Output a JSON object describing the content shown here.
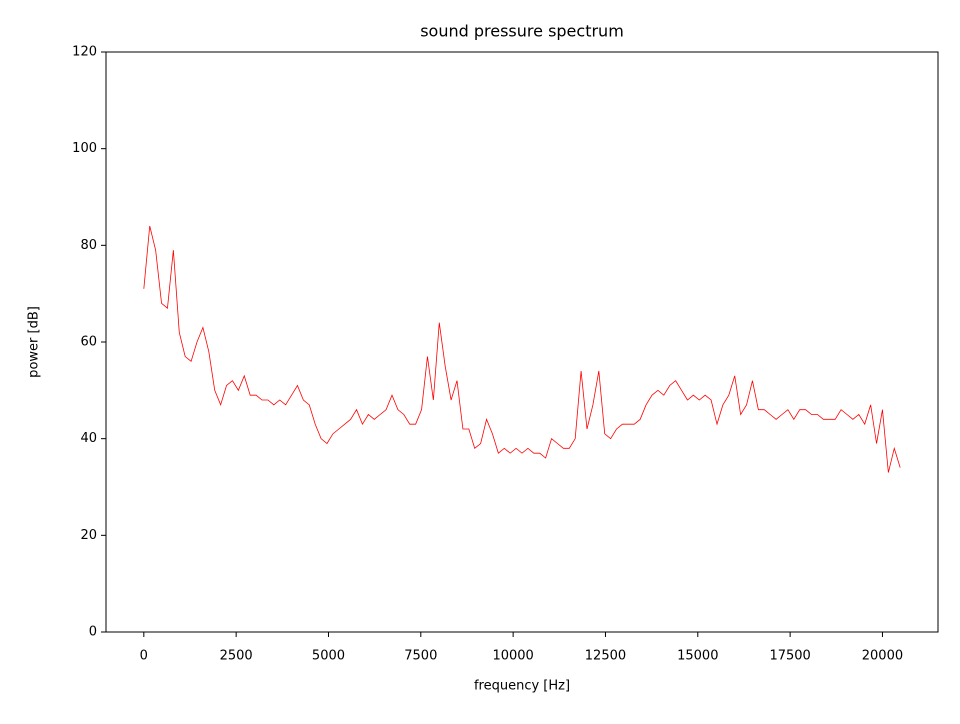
{
  "chart_data": {
    "type": "line",
    "title": "sound pressure spectrum",
    "x_label": "frequency [Hz]",
    "y_label": "power [dB]",
    "color": "#ff0000",
    "x": [
      0,
      160,
      320,
      480,
      640,
      800,
      960,
      1120,
      1280,
      1440,
      1600,
      1760,
      1920,
      2080,
      2240,
      2400,
      2560,
      2720,
      2880,
      3040,
      3200,
      3360,
      3520,
      3680,
      3840,
      4000,
      4160,
      4320,
      4480,
      4640,
      4800,
      4960,
      5120,
      5280,
      5440,
      5600,
      5760,
      5920,
      6080,
      6240,
      6400,
      6560,
      6720,
      6880,
      7040,
      7200,
      7360,
      7520,
      7680,
      7840,
      8000,
      8160,
      8320,
      8480,
      8640,
      8800,
      8960,
      9120,
      9280,
      9440,
      9600,
      9760,
      9920,
      10080,
      10240,
      10400,
      10560,
      10720,
      10880,
      11040,
      11200,
      11360,
      11520,
      11680,
      11840,
      12000,
      12160,
      12320,
      12480,
      12640,
      12800,
      12960,
      13120,
      13280,
      13440,
      13600,
      13760,
      13920,
      14080,
      14240,
      14400,
      14560,
      14720,
      14880,
      15040,
      15200,
      15360,
      15520,
      15680,
      15840,
      16000,
      16160,
      16320,
      16480,
      16640,
      16800,
      16960,
      17120,
      17280,
      17440,
      17600,
      17760,
      17920,
      18080,
      18240,
      18400,
      18560,
      18720,
      18880,
      19040,
      19200,
      19360,
      19520,
      19680,
      19840,
      20000,
      20160,
      20320,
      20480
    ],
    "values": [
      71,
      84,
      79,
      68,
      67,
      79,
      62,
      57,
      56,
      60,
      63,
      58,
      50,
      47,
      51,
      52,
      50,
      53,
      49,
      49,
      48,
      48,
      47,
      48,
      47,
      49,
      51,
      48,
      47,
      43,
      40,
      39,
      41,
      42,
      43,
      44,
      46,
      43,
      45,
      44,
      45,
      46,
      49,
      46,
      45,
      43,
      43,
      46,
      57,
      48,
      64,
      55,
      48,
      52,
      42,
      42,
      38,
      39,
      44,
      41,
      37,
      38,
      37,
      38,
      37,
      38,
      37,
      37,
      36,
      40,
      39,
      38,
      38,
      40,
      54,
      42,
      47,
      54,
      41,
      40,
      42,
      43,
      43,
      43,
      44,
      47,
      49,
      50,
      49,
      51,
      52,
      50,
      48,
      49,
      48,
      49,
      48,
      43,
      47,
      49,
      53,
      45,
      47,
      52,
      46,
      46,
      45,
      44,
      45,
      46,
      44,
      46,
      46,
      45,
      45,
      44,
      44,
      44,
      46,
      45,
      44,
      45,
      43,
      47,
      39,
      46,
      33,
      38,
      34
    ],
    "xlim": [
      -1024,
      21504
    ],
    "xticks": [
      0,
      2500,
      5000,
      7500,
      10000,
      12500,
      15000,
      17500,
      20000
    ],
    "ylim": [
      0,
      120
    ],
    "yticks": [
      0,
      20,
      40,
      60,
      80,
      100,
      120
    ]
  }
}
